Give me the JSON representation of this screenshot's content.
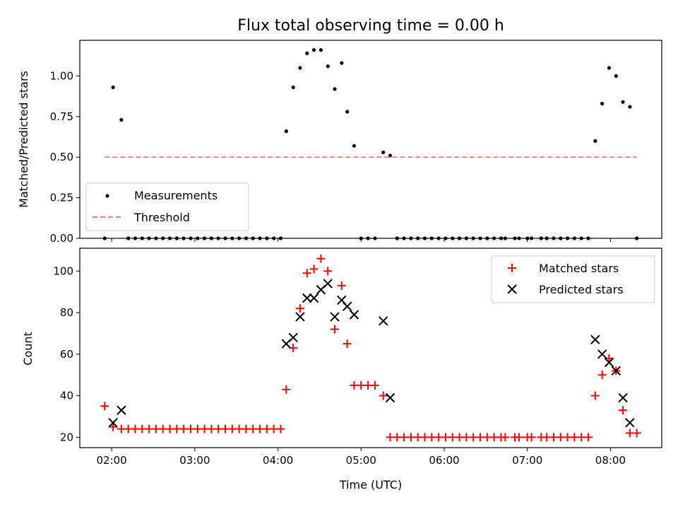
{
  "chart_data": [
    {
      "type": "scatter",
      "title": "Flux total observing time = 0.00 h",
      "xlabel": "",
      "ylabel": "Matched/Predicted stars",
      "xlim": [
        "01:37",
        "08:37"
      ],
      "ylim": [
        0,
        1.22
      ],
      "x_ticks": [
        "02:00",
        "03:00",
        "04:00",
        "05:00",
        "06:00",
        "07:00",
        "08:00"
      ],
      "y_ticks": [
        0.0,
        0.25,
        0.5,
        0.75,
        1.0
      ],
      "y_tick_labels": [
        "0.00",
        "0.25",
        "0.50",
        "0.75",
        "1.00"
      ],
      "grid": false,
      "legend": {
        "position": "lower-left",
        "entries": [
          "Measurements",
          "Threshold"
        ]
      },
      "series": [
        {
          "name": "Measurements",
          "color": "#000000",
          "marker": "dot",
          "points": [
            [
              "01:55",
              0.0
            ],
            [
              "02:01",
              0.93
            ],
            [
              "02:07",
              0.73
            ],
            [
              "02:12",
              0.0
            ],
            [
              "02:17",
              0.0
            ],
            [
              "02:22",
              0.0
            ],
            [
              "02:27",
              0.0
            ],
            [
              "02:32",
              0.0
            ],
            [
              "02:37",
              0.0
            ],
            [
              "02:42",
              0.0
            ],
            [
              "02:47",
              0.0
            ],
            [
              "02:52",
              0.0
            ],
            [
              "02:57",
              0.0
            ],
            [
              "03:02",
              0.0
            ],
            [
              "03:07",
              0.0
            ],
            [
              "03:12",
              0.0
            ],
            [
              "03:17",
              0.0
            ],
            [
              "03:22",
              0.0
            ],
            [
              "03:27",
              0.0
            ],
            [
              "03:32",
              0.0
            ],
            [
              "03:37",
              0.0
            ],
            [
              "03:42",
              0.0
            ],
            [
              "03:47",
              0.0
            ],
            [
              "03:52",
              0.0
            ],
            [
              "03:57",
              0.0
            ],
            [
              "04:02",
              0.0
            ],
            [
              "04:06",
              0.66
            ],
            [
              "04:11",
              0.93
            ],
            [
              "04:16",
              1.05
            ],
            [
              "04:21",
              1.14
            ],
            [
              "04:26",
              1.16
            ],
            [
              "04:31",
              1.16
            ],
            [
              "04:36",
              1.06
            ],
            [
              "04:41",
              0.92
            ],
            [
              "04:46",
              1.08
            ],
            [
              "04:50",
              0.78
            ],
            [
              "04:55",
              0.57
            ],
            [
              "05:00",
              0.0
            ],
            [
              "05:05",
              0.0
            ],
            [
              "05:10",
              0.0
            ],
            [
              "05:16",
              0.53
            ],
            [
              "05:21",
              0.51
            ],
            [
              "05:26",
              0.0
            ],
            [
              "05:31",
              0.0
            ],
            [
              "05:36",
              0.0
            ],
            [
              "05:41",
              0.0
            ],
            [
              "05:46",
              0.0
            ],
            [
              "05:51",
              0.0
            ],
            [
              "05:56",
              0.0
            ],
            [
              "06:01",
              0.0
            ],
            [
              "06:06",
              0.0
            ],
            [
              "06:11",
              0.0
            ],
            [
              "06:16",
              0.0
            ],
            [
              "06:21",
              0.0
            ],
            [
              "06:26",
              0.0
            ],
            [
              "06:31",
              0.0
            ],
            [
              "06:36",
              0.0
            ],
            [
              "06:41",
              0.0
            ],
            [
              "06:44",
              0.0
            ],
            [
              "06:51",
              0.0
            ],
            [
              "06:54",
              0.0
            ],
            [
              "07:00",
              0.0
            ],
            [
              "07:03",
              0.0
            ],
            [
              "07:10",
              0.0
            ],
            [
              "07:14",
              0.0
            ],
            [
              "07:19",
              0.0
            ],
            [
              "07:24",
              0.0
            ],
            [
              "07:29",
              0.0
            ],
            [
              "07:34",
              0.0
            ],
            [
              "07:39",
              0.0
            ],
            [
              "07:44",
              0.0
            ],
            [
              "07:49",
              0.6
            ],
            [
              "07:54",
              0.83
            ],
            [
              "07:59",
              1.05
            ],
            [
              "08:04",
              1.0
            ],
            [
              "08:09",
              0.84
            ],
            [
              "08:14",
              0.81
            ],
            [
              "08:19",
              0.0
            ]
          ]
        },
        {
          "name": "Threshold",
          "color": "#f08080",
          "style": "dashed",
          "points": [
            [
              "01:55",
              0.5
            ],
            [
              "08:19",
              0.5
            ]
          ]
        }
      ]
    },
    {
      "type": "scatter",
      "title": "",
      "xlabel": "Time (UTC)",
      "ylabel": "Count",
      "xlim": [
        "01:37",
        "08:37"
      ],
      "ylim": [
        15,
        111
      ],
      "x_ticks": [
        "02:00",
        "03:00",
        "04:00",
        "05:00",
        "06:00",
        "07:00",
        "08:00"
      ],
      "y_ticks": [
        20,
        40,
        60,
        80,
        100
      ],
      "y_tick_labels": [
        "20",
        "40",
        "60",
        "80",
        "100"
      ],
      "grid": false,
      "legend": {
        "position": "top-right",
        "entries": [
          "Matched stars",
          "Predicted stars"
        ]
      },
      "series": [
        {
          "name": "Matched stars",
          "color": "#ff0000",
          "marker": "plus",
          "points": [
            [
              "01:55",
              35
            ],
            [
              "02:01",
              25
            ],
            [
              "02:07",
              24
            ],
            [
              "02:12",
              24
            ],
            [
              "02:17",
              24
            ],
            [
              "02:22",
              24
            ],
            [
              "02:27",
              24
            ],
            [
              "02:32",
              24
            ],
            [
              "02:37",
              24
            ],
            [
              "02:42",
              24
            ],
            [
              "02:47",
              24
            ],
            [
              "02:52",
              24
            ],
            [
              "02:57",
              24
            ],
            [
              "03:02",
              24
            ],
            [
              "03:07",
              24
            ],
            [
              "03:12",
              24
            ],
            [
              "03:17",
              24
            ],
            [
              "03:22",
              24
            ],
            [
              "03:27",
              24
            ],
            [
              "03:32",
              24
            ],
            [
              "03:37",
              24
            ],
            [
              "03:42",
              24
            ],
            [
              "03:47",
              24
            ],
            [
              "03:52",
              24
            ],
            [
              "03:57",
              24
            ],
            [
              "04:02",
              24
            ],
            [
              "04:06",
              43
            ],
            [
              "04:11",
              63
            ],
            [
              "04:16",
              82
            ],
            [
              "04:21",
              99
            ],
            [
              "04:26",
              101
            ],
            [
              "04:31",
              106
            ],
            [
              "04:36",
              100
            ],
            [
              "04:41",
              72
            ],
            [
              "04:46",
              93
            ],
            [
              "04:50",
              65
            ],
            [
              "04:55",
              45
            ],
            [
              "05:00",
              45
            ],
            [
              "05:05",
              45
            ],
            [
              "05:10",
              45
            ],
            [
              "05:16",
              40
            ],
            [
              "05:21",
              20
            ],
            [
              "05:26",
              20
            ],
            [
              "05:31",
              20
            ],
            [
              "05:36",
              20
            ],
            [
              "05:41",
              20
            ],
            [
              "05:46",
              20
            ],
            [
              "05:51",
              20
            ],
            [
              "05:56",
              20
            ],
            [
              "06:01",
              20
            ],
            [
              "06:06",
              20
            ],
            [
              "06:11",
              20
            ],
            [
              "06:16",
              20
            ],
            [
              "06:21",
              20
            ],
            [
              "06:26",
              20
            ],
            [
              "06:31",
              20
            ],
            [
              "06:36",
              20
            ],
            [
              "06:41",
              20
            ],
            [
              "06:44",
              20
            ],
            [
              "06:51",
              20
            ],
            [
              "06:54",
              20
            ],
            [
              "07:00",
              20
            ],
            [
              "07:03",
              20
            ],
            [
              "07:10",
              20
            ],
            [
              "07:14",
              20
            ],
            [
              "07:19",
              20
            ],
            [
              "07:24",
              20
            ],
            [
              "07:29",
              20
            ],
            [
              "07:34",
              20
            ],
            [
              "07:39",
              20
            ],
            [
              "07:44",
              20
            ],
            [
              "07:49",
              40
            ],
            [
              "07:54",
              50
            ],
            [
              "07:59",
              58
            ],
            [
              "08:04",
              52
            ],
            [
              "08:09",
              33
            ],
            [
              "08:14",
              22
            ],
            [
              "08:19",
              22
            ]
          ]
        },
        {
          "name": "Predicted stars",
          "color": "#000000",
          "marker": "x",
          "points": [
            [
              "02:01",
              27
            ],
            [
              "02:07",
              33
            ],
            [
              "04:06",
              65
            ],
            [
              "04:11",
              68
            ],
            [
              "04:16",
              78
            ],
            [
              "04:21",
              87
            ],
            [
              "04:26",
              87
            ],
            [
              "04:31",
              91
            ],
            [
              "04:36",
              94
            ],
            [
              "04:41",
              78
            ],
            [
              "04:46",
              86
            ],
            [
              "04:50",
              83
            ],
            [
              "04:55",
              79
            ],
            [
              "05:16",
              76
            ],
            [
              "05:21",
              39
            ],
            [
              "07:49",
              67
            ],
            [
              "07:54",
              60
            ],
            [
              "07:59",
              56
            ],
            [
              "08:04",
              52
            ],
            [
              "08:09",
              39
            ],
            [
              "08:14",
              27
            ]
          ]
        }
      ]
    }
  ]
}
